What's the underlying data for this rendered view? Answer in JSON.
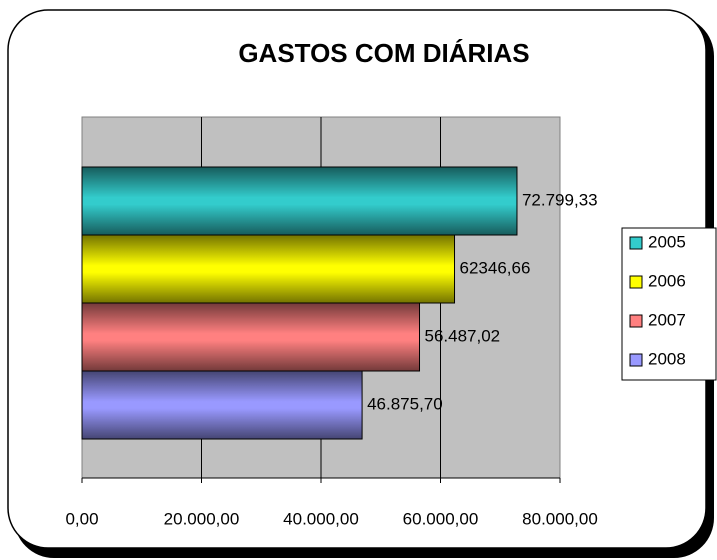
{
  "chart_data": {
    "type": "bar",
    "orientation": "horizontal",
    "title": "GASTOS COM DIÁRIAS",
    "categories": [
      null
    ],
    "series": [
      {
        "name": "2005",
        "color": "#33cccc",
        "values": [
          72799.33
        ],
        "value_labels": [
          "72.799,33"
        ]
      },
      {
        "name": "2006",
        "color": "#ffff00",
        "values": [
          62346.66
        ],
        "value_labels": [
          "62346,66"
        ]
      },
      {
        "name": "2007",
        "color": "#ff8080",
        "values": [
          56487.02
        ],
        "value_labels": [
          "56.487,02"
        ]
      },
      {
        "name": "2008",
        "color": "#9999ff",
        "values": [
          46875.7
        ],
        "value_labels": [
          "46.875,70"
        ]
      }
    ],
    "xlim": [
      0,
      80000
    ],
    "xticks": [
      {
        "value": 0,
        "label": "0,00"
      },
      {
        "value": 20000,
        "label": "20.000,00"
      },
      {
        "value": 40000,
        "label": "40.000,00"
      },
      {
        "value": 60000,
        "label": "60.000,00"
      },
      {
        "value": 80000,
        "label": "80.000,00"
      }
    ],
    "grid": true,
    "legend": "right"
  }
}
